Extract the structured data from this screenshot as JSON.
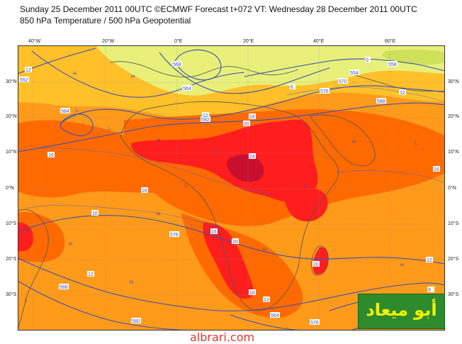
{
  "header": {
    "title_line1": "Sunday 25 December 2011 00UTC ©ECMWF Forecast t+072 VT: Wednesday 28 December 2011 00UTC",
    "title_line2": "850 hPa Temperature / 500 hPa Geopotential"
  },
  "axes": {
    "lat_labels": [
      "30°N",
      "20°N",
      "10°N",
      "0°N",
      "10°S",
      "20°S",
      "30°S"
    ],
    "lon_labels": [
      "40°W",
      "20°W",
      "0°E",
      "20°E",
      "40°E",
      "60°E"
    ]
  },
  "contour_labels": {
    "geopotential": [
      "552",
      "568",
      "576",
      "564",
      "570",
      "554",
      "588",
      "536",
      "584",
      "592",
      "560",
      "568",
      "552",
      "560",
      "536",
      "584",
      "576",
      "588",
      "580",
      "576",
      "564",
      "558"
    ],
    "temperature": [
      "12",
      "0",
      "6",
      "12",
      "20",
      "16",
      "24",
      "16",
      "16",
      "16",
      "16",
      "20",
      "12",
      "16",
      "12",
      "12",
      "20",
      "16",
      "12",
      "8",
      "12",
      "4"
    ],
    "pressure_marks": [
      "H",
      "L"
    ]
  },
  "legend_colors": {
    "very_hot": "#c8102e",
    "hot": "#ff1e1e",
    "warm": "#ff6a00",
    "mild": "#ff9a1a",
    "cool": "#ffc02a",
    "cold": "#e8f07a",
    "contour": "#3a4fb5",
    "coast": "#555555"
  },
  "branding": {
    "logo_text": "أبو ميعاد",
    "website": "albrari.com"
  }
}
